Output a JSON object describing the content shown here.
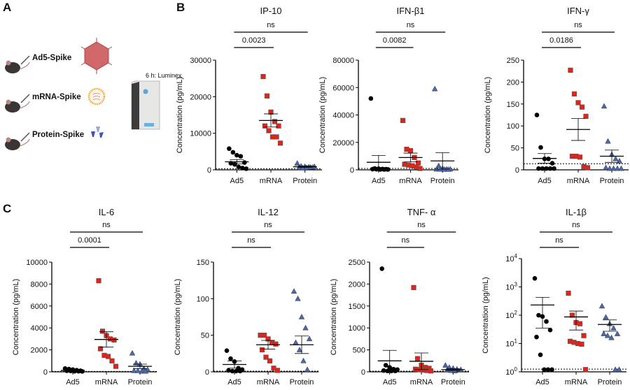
{
  "panels": {
    "a": "A",
    "b": "B",
    "c": "C"
  },
  "schematic": {
    "groups": [
      "Ad5-Spike",
      "mRNA-Spike",
      "Protein-Spike"
    ],
    "readout": "6 h: Luminex"
  },
  "colors": {
    "Ad5": "#000000",
    "mRNA": "#e2231a",
    "Protein": "#4a68b0"
  },
  "chart_data": [
    {
      "type": "scatter",
      "title": "IP-10",
      "ylabel": "Concentration (pg/mL)",
      "categories": [
        "Ad5",
        "mRNA",
        "Protein"
      ],
      "ylim": [
        0,
        30000
      ],
      "yticks": [
        0,
        10000,
        20000,
        30000
      ],
      "log": false,
      "lod": 300,
      "series": [
        {
          "values": [
            5800,
            4800,
            4000,
            3700,
            2000,
            1800,
            1500,
            800,
            500,
            300
          ],
          "mean": 2200,
          "sem": 600
        },
        {
          "values": [
            25500,
            20200,
            15800,
            13200,
            12000,
            12000,
            10700,
            9000,
            9000,
            7300
          ],
          "mean": 13500,
          "sem": 1800
        },
        {
          "values": [
            1800,
            1000,
            900,
            800,
            700,
            600,
            500,
            600,
            700,
            900
          ],
          "mean": 850,
          "sem": 150
        }
      ],
      "comparisons": [
        {
          "pair": [
            "Ad5",
            "mRNA"
          ],
          "label": "0.0023"
        },
        {
          "pair": [
            "Ad5",
            "Protein"
          ],
          "label": "ns"
        }
      ]
    },
    {
      "type": "scatter",
      "title": "IFN-β1",
      "ylabel": "Concentration (pg/mL)",
      "categories": [
        "Ad5",
        "mRNA",
        "Protein"
      ],
      "ylim": [
        0,
        80000
      ],
      "yticks": [
        0,
        20000,
        40000,
        60000,
        80000
      ],
      "log": false,
      "lod": 1000,
      "series": [
        {
          "values": [
            52000,
            1000,
            800,
            600,
            500,
            500,
            400,
            300,
            300,
            300
          ],
          "mean": 5500,
          "sem": 5000
        },
        {
          "values": [
            36000,
            15000,
            14000,
            9000,
            5000,
            4000,
            3500,
            3000,
            2000,
            1000
          ],
          "mean": 9000,
          "sem": 3200
        },
        {
          "values": [
            59000,
            3000,
            1000,
            500,
            500,
            500,
            400,
            300,
            300
          ],
          "mean": 6500,
          "sem": 6000
        }
      ],
      "comparisons": [
        {
          "pair": [
            "Ad5",
            "mRNA"
          ],
          "label": "0.0082"
        },
        {
          "pair": [
            "Ad5",
            "Protein"
          ],
          "label": "ns"
        }
      ]
    },
    {
      "type": "scatter",
      "title": "IFN-γ",
      "ylabel": "Concentration (pg/mL)",
      "categories": [
        "Ad5",
        "mRNA",
        "Protein"
      ],
      "ylim": [
        0,
        250
      ],
      "yticks": [
        0,
        50,
        100,
        150,
        200,
        250
      ],
      "log": false,
      "lod": 14,
      "series": [
        {
          "values": [
            125,
            51,
            25,
            25,
            15,
            3,
            3,
            3,
            3,
            3
          ],
          "mean": 26,
          "sem": 11
        },
        {
          "values": [
            227,
            173,
            153,
            143,
            122,
            31,
            31,
            29,
            7,
            5
          ],
          "mean": 92,
          "sem": 25
        },
        {
          "values": [
            145,
            65,
            35,
            25,
            20,
            5,
            3,
            3,
            3,
            3
          ],
          "mean": 31,
          "sem": 14
        }
      ],
      "comparisons": [
        {
          "pair": [
            "Ad5",
            "mRNA"
          ],
          "label": "0.0186"
        },
        {
          "pair": [
            "Ad5",
            "Protein"
          ],
          "label": "ns"
        }
      ]
    },
    {
      "type": "scatter",
      "title": "IL-6",
      "ylabel": "Concentration (pg/mL)",
      "categories": [
        "Ad5",
        "mRNA",
        "Protein"
      ],
      "ylim": [
        0,
        10000
      ],
      "yticks": [
        0,
        2000,
        4000,
        6000,
        8000,
        10000
      ],
      "log": false,
      "lod": 40,
      "series": [
        {
          "values": [
            300,
            250,
            200,
            150,
            100,
            100,
            80,
            50,
            50,
            40
          ],
          "mean": 130,
          "sem": 30
        },
        {
          "values": [
            8300,
            3700,
            3300,
            3000,
            2900,
            2100,
            1500,
            1400,
            1000,
            500
          ],
          "mean": 2950,
          "sem": 700
        },
        {
          "values": [
            1700,
            800,
            700,
            300,
            200,
            100,
            100,
            50,
            50
          ],
          "mean": 500,
          "sem": 200
        }
      ],
      "comparisons": [
        {
          "pair": [
            "Ad5",
            "mRNA"
          ],
          "label": "0.0001"
        },
        {
          "pair": [
            "Ad5",
            "Protein"
          ],
          "label": "ns"
        }
      ]
    },
    {
      "type": "scatter",
      "title": "IL-12",
      "ylabel": "Concentration (pg/mL)",
      "categories": [
        "Ad5",
        "mRNA",
        "Protein"
      ],
      "ylim": [
        0,
        150
      ],
      "yticks": [
        0,
        50,
        100,
        150
      ],
      "log": false,
      "lod": 1,
      "series": [
        {
          "values": [
            29,
            18,
            14,
            5,
            3,
            2,
            1,
            1,
            1
          ],
          "mean": 10,
          "sem": 5
        },
        {
          "values": [
            50,
            50,
            45,
            40,
            38,
            30,
            20,
            15,
            5,
            2
          ],
          "mean": 37,
          "sem": 6
        },
        {
          "values": [
            110,
            100,
            75,
            60,
            45,
            40,
            30,
            15,
            3
          ],
          "mean": 37,
          "sem": 12
        }
      ],
      "comparisons": [
        {
          "pair": [
            "Ad5",
            "mRNA"
          ],
          "label": "ns"
        },
        {
          "pair": [
            "Ad5",
            "Protein"
          ],
          "label": "ns"
        }
      ]
    },
    {
      "type": "scatter",
      "title": "TNF- α",
      "ylabel": "Concentration (pg/mL)",
      "categories": [
        "Ad5",
        "mRNA",
        "Protein"
      ],
      "ylim": [
        0,
        2500
      ],
      "yticks": [
        0,
        500,
        1000,
        1500,
        2000,
        2500
      ],
      "log": false,
      "lod": 15,
      "series": [
        {
          "values": [
            2350,
            150,
            100,
            60,
            50,
            30,
            20,
            20,
            20
          ],
          "mean": 250,
          "sem": 240
        },
        {
          "values": [
            1920,
            300,
            150,
            100,
            80,
            60,
            50,
            40,
            30,
            20
          ],
          "mean": 240,
          "sem": 190
        },
        {
          "values": [
            150,
            100,
            80,
            60,
            50,
            40,
            30,
            20
          ],
          "mean": 50,
          "sem": 20
        }
      ],
      "comparisons": [
        {
          "pair": [
            "Ad5",
            "mRNA"
          ],
          "label": "ns"
        },
        {
          "pair": [
            "Ad5",
            "Protein"
          ],
          "label": "ns"
        }
      ]
    },
    {
      "type": "scatter",
      "title": "IL-1β",
      "ylabel": "Concentration (pg/mL)",
      "categories": [
        "Ad5",
        "mRNA",
        "Protein"
      ],
      "ylim": [
        1,
        10000
      ],
      "yticks": [
        1,
        10,
        100,
        1000,
        10000
      ],
      "log": true,
      "lod": 1.25,
      "series": [
        {
          "values": [
            2000,
            100,
            90,
            60,
            30,
            17,
            4,
            1.2,
            1.2,
            1.2
          ],
          "mean": 230,
          "sem_range": [
            35,
            430
          ]
        },
        {
          "values": [
            600,
            100,
            55,
            50,
            19,
            12,
            11,
            10,
            9.5,
            1.2
          ],
          "mean": 87,
          "sem_range": [
            30,
            140
          ]
        },
        {
          "values": [
            210,
            85,
            50,
            35,
            22,
            22,
            19,
            16,
            1.2,
            1.2
          ],
          "mean": 47,
          "sem_range": [
            27,
            68
          ]
        }
      ],
      "comparisons": [
        {
          "pair": [
            "Ad5",
            "mRNA"
          ],
          "label": "ns"
        },
        {
          "pair": [
            "Ad5",
            "Protein"
          ],
          "label": "ns"
        }
      ]
    }
  ]
}
